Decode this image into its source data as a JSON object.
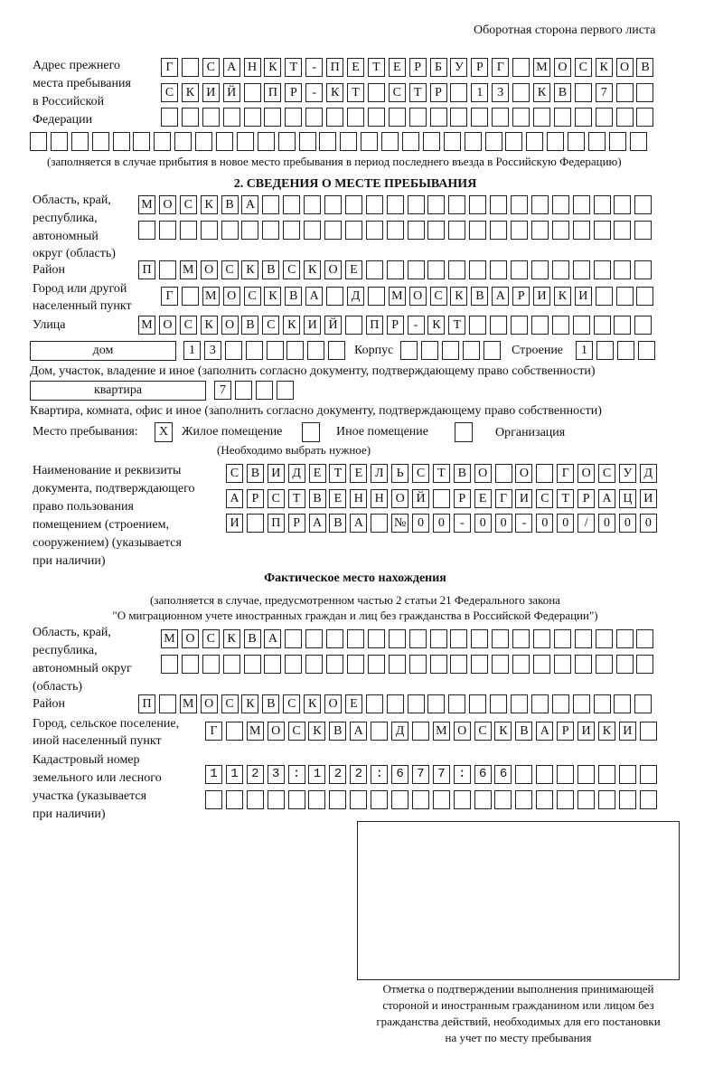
{
  "header": "Оборотная сторона первого листа",
  "prev": {
    "label": [
      "Адрес прежнего",
      "места пребывания",
      "в Российской",
      "Федерации"
    ],
    "rows": [
      "Г САНКТ-ПЕТЕРБУРГ МОСКОВ",
      "СКИЙ ПР-КТ СТР 13 КВ 7  ",
      "                        ",
      "                              "
    ],
    "note": "(заполняется в случае прибытия в новое место пребывания в период последнего въезда в Российскую Федерацию)"
  },
  "section2": {
    "title": "2. СВЕДЕНИЯ О МЕСТЕ ПРЕБЫВАНИЯ",
    "oblast_label": [
      "Область, край,",
      "республика,",
      "автономный",
      "округ (область)"
    ],
    "oblast": [
      "МОСКВА                   ",
      "                         "
    ],
    "raion_label": "Район",
    "raion": "П МОСКВСКОЕ              ",
    "gorod_label": [
      "Город или другой",
      "населенный пункт"
    ],
    "gorod": "Г МОСКВА Д МОСКВАРИКИ   ",
    "ulitsa_label": "Улица",
    "ulitsa": "МОСКОВСКИЙ ПР-КТ         ",
    "dom_type": "дом",
    "dom": "13      ",
    "korpus_label": "Корпус",
    "korpus": "     ",
    "stroenie_label": "Строение",
    "stroenie": "1   ",
    "dom_note": "Дом, участок, владение и иное (заполнить согласно документу, подтверждающему право собственности)",
    "kv_type": "квартира",
    "kv": "7   ",
    "kv_note": "Квартира, комната, офис и иное (заполнить согласно документу, подтверждающему право собственности)",
    "mesto_label": "Место пребывания:",
    "options": [
      {
        "mark": "X",
        "label": "Жилое помещение",
        "checked": true
      },
      {
        "mark": "",
        "label": "Иное помещение",
        "checked": false
      },
      {
        "mark": "",
        "label": "Организация",
        "checked": false
      }
    ],
    "mesto_note": "(Необходимо выбрать нужное)",
    "doc_label": [
      "Наименование и реквизиты",
      "документа, подтверждающего",
      "право пользования",
      "помещением (строением,",
      "сооружением) (указывается",
      "при наличии)"
    ],
    "doc": [
      "СВИДЕТЕЛЬСТВО О ГОСУД",
      "АРСТВЕННОЙ РЕГИСТРАЦИ",
      "И ПРАВА №00-00-00/000"
    ]
  },
  "fact": {
    "title": "Фактическое место нахождения",
    "note": [
      "(заполняется в случае, предусмотренном частью 2 статьи 21 Федерального закона",
      "\"О миграционном учете иностранных граждан и лиц без гражданства в Российской Федерации\")"
    ],
    "oblast_label": [
      "Область, край,",
      "республика,",
      "автономный округ",
      "(область)"
    ],
    "oblast": [
      "МОСКВА                  ",
      "                        "
    ],
    "raion_label": "Район",
    "raion": "П МОСКВСКОЕ              ",
    "gorod_label": [
      "Город, сельское поселение,",
      "иной населенный пункт"
    ],
    "gorod": "Г МОСКВА Д МОСКВАРИКИ ",
    "kad_label": [
      "Кадастровый номер",
      "земельного или лесного",
      "участка (указывается",
      "при наличии)"
    ],
    "kad": [
      "1123:122:677:66       ",
      "                      "
    ]
  },
  "stamp_caption": [
    "Отметка о подтверждении выполнения принимающей",
    "стороной и иностранным гражданином или лицом без",
    "гражданства действий, необходимых для его постановки",
    "на учет по месту пребывания"
  ]
}
